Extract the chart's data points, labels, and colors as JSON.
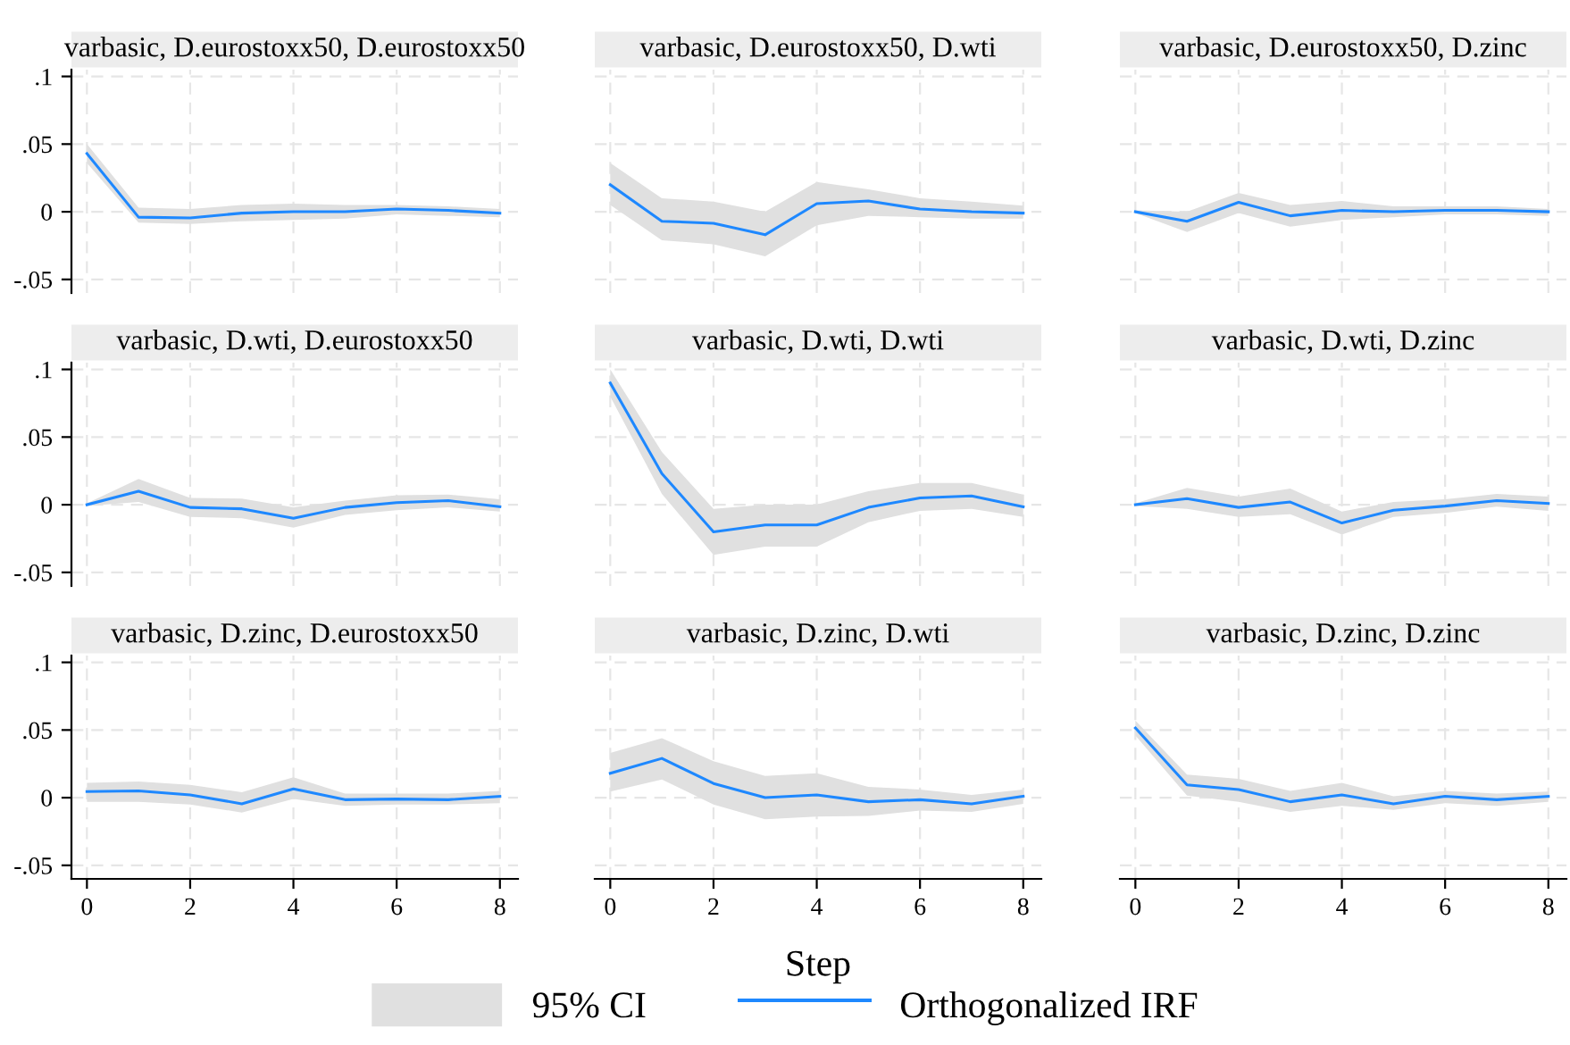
{
  "chart_data": [
    {
      "type": "line",
      "title": "varbasic, D.eurostoxx50, D.eurostoxx50",
      "x": [
        0,
        1,
        2,
        3,
        4,
        5,
        6,
        7,
        8
      ],
      "xlim": [
        -0.3,
        8.35
      ],
      "xticks": [
        {
          "value": 0,
          "label": null
        },
        {
          "value": 2,
          "label": null
        },
        {
          "value": 4,
          "label": null
        },
        {
          "value": 6,
          "label": null
        },
        {
          "value": 8,
          "label": null
        }
      ],
      "ylim": [
        -0.06,
        0.105
      ],
      "yticks": [
        {
          "value": -0.05,
          "label": "-.05"
        },
        {
          "value": 0,
          "label": "0"
        },
        {
          "value": 0.05,
          "label": ".05"
        },
        {
          "value": 0.1,
          "label": ".1"
        }
      ],
      "tick_labels": "y",
      "grid": true,
      "legend": false,
      "series": [
        {
          "type": "line",
          "color": "#1e88ff",
          "values": [
            0.043,
            -0.004,
            -0.0045,
            -0.001,
            0,
            0,
            0.002,
            0.001,
            -0.001
          ],
          "lower": [
            0.036,
            -0.008,
            -0.009,
            -0.007,
            -0.006,
            -0.005,
            -0.002,
            -0.003,
            -0.004
          ],
          "upper": [
            0.05,
            0.003,
            0.002,
            0.005,
            0.006,
            0.005,
            0.005,
            0.004,
            0.002
          ]
        }
      ]
    },
    {
      "type": "line",
      "title": "varbasic, D.eurostoxx50, D.wti",
      "x": [
        0,
        1,
        2,
        3,
        4,
        5,
        6,
        7,
        8
      ],
      "xlim": [
        -0.3,
        8.35
      ],
      "xticks": [
        {
          "value": 0,
          "label": null
        },
        {
          "value": 2,
          "label": null
        },
        {
          "value": 4,
          "label": null
        },
        {
          "value": 6,
          "label": null
        },
        {
          "value": 8,
          "label": null
        }
      ],
      "ylim": [
        -0.06,
        0.105
      ],
      "yticks": [
        {
          "value": -0.05,
          "label": null
        },
        {
          "value": 0,
          "label": null
        },
        {
          "value": 0.05,
          "label": null
        },
        {
          "value": 0.1,
          "label": null
        }
      ],
      "tick_labels": false,
      "grid": true,
      "legend": false,
      "series": [
        {
          "type": "line",
          "color": "#1e88ff",
          "values": [
            0.02,
            -0.007,
            -0.0085,
            -0.017,
            0.006,
            0.008,
            0.002,
            0,
            -0.001
          ],
          "lower": [
            0.005,
            -0.021,
            -0.024,
            -0.033,
            -0.01,
            -0.003,
            -0.004,
            -0.005,
            -0.005
          ],
          "upper": [
            0.036,
            0.01,
            0.0075,
            0,
            0.022,
            0.0165,
            0.01,
            0.0075,
            0.0045
          ]
        }
      ]
    },
    {
      "type": "line",
      "title": "varbasic, D.eurostoxx50, D.zinc",
      "x": [
        0,
        1,
        2,
        3,
        4,
        5,
        6,
        7,
        8
      ],
      "xlim": [
        -0.3,
        8.35
      ],
      "xticks": [
        {
          "value": 0,
          "label": null
        },
        {
          "value": 2,
          "label": null
        },
        {
          "value": 4,
          "label": null
        },
        {
          "value": 6,
          "label": null
        },
        {
          "value": 8,
          "label": null
        }
      ],
      "ylim": [
        -0.06,
        0.105
      ],
      "yticks": [
        {
          "value": -0.05,
          "label": null
        },
        {
          "value": 0,
          "label": null
        },
        {
          "value": 0.05,
          "label": null
        },
        {
          "value": 0.1,
          "label": null
        }
      ],
      "tick_labels": false,
      "grid": true,
      "legend": false,
      "series": [
        {
          "type": "line",
          "color": "#1e88ff",
          "values": [
            0,
            -0.007,
            0.007,
            -0.003,
            0.001,
            0,
            0.001,
            0.001,
            0
          ],
          "lower": [
            -0.001,
            -0.015,
            -0.001,
            -0.011,
            -0.006,
            -0.004,
            -0.002,
            -0.002,
            -0.003
          ],
          "upper": [
            0.001,
            0,
            0.014,
            0.005,
            0.008,
            0.004,
            0.004,
            0.004,
            0.002
          ]
        }
      ]
    },
    {
      "type": "line",
      "title": "varbasic, D.wti, D.eurostoxx50",
      "x": [
        0,
        1,
        2,
        3,
        4,
        5,
        6,
        7,
        8
      ],
      "xlim": [
        -0.3,
        8.35
      ],
      "xticks": [
        {
          "value": 0,
          "label": null
        },
        {
          "value": 2,
          "label": null
        },
        {
          "value": 4,
          "label": null
        },
        {
          "value": 6,
          "label": null
        },
        {
          "value": 8,
          "label": null
        }
      ],
      "ylim": [
        -0.06,
        0.105
      ],
      "yticks": [
        {
          "value": -0.05,
          "label": "-.05"
        },
        {
          "value": 0,
          "label": "0"
        },
        {
          "value": 0.05,
          "label": ".05"
        },
        {
          "value": 0.1,
          "label": ".1"
        }
      ],
      "tick_labels": "y",
      "grid": true,
      "legend": false,
      "series": [
        {
          "type": "line",
          "color": "#1e88ff",
          "values": [
            0,
            0.01,
            -0.002,
            -0.003,
            -0.01,
            -0.002,
            0.0015,
            0.003,
            -0.0015
          ],
          "lower": [
            -0.001,
            0.002,
            -0.009,
            -0.01,
            -0.017,
            -0.0075,
            -0.004,
            -0.002,
            -0.005
          ],
          "upper": [
            0.001,
            0.019,
            0.005,
            0.0045,
            -0.002,
            0.003,
            0.007,
            0.0075,
            0.004
          ]
        }
      ]
    },
    {
      "type": "line",
      "title": "varbasic, D.wti, D.wti",
      "x": [
        0,
        1,
        2,
        3,
        4,
        5,
        6,
        7,
        8
      ],
      "xlim": [
        -0.3,
        8.35
      ],
      "xticks": [
        {
          "value": 0,
          "label": null
        },
        {
          "value": 2,
          "label": null
        },
        {
          "value": 4,
          "label": null
        },
        {
          "value": 6,
          "label": null
        },
        {
          "value": 8,
          "label": null
        }
      ],
      "ylim": [
        -0.06,
        0.105
      ],
      "yticks": [
        {
          "value": -0.05,
          "label": null
        },
        {
          "value": 0,
          "label": null
        },
        {
          "value": 0.05,
          "label": null
        },
        {
          "value": 0.1,
          "label": null
        }
      ],
      "tick_labels": false,
      "grid": true,
      "legend": false,
      "series": [
        {
          "type": "line",
          "color": "#1e88ff",
          "values": [
            0.09,
            0.023,
            -0.02,
            -0.015,
            -0.015,
            -0.002,
            0.005,
            0.0065,
            -0.0015
          ],
          "lower": [
            0.08,
            0.008,
            -0.037,
            -0.031,
            -0.031,
            -0.013,
            -0.0045,
            -0.003,
            -0.009
          ],
          "upper": [
            0.1,
            0.039,
            -0.003,
            0,
            0,
            0.01,
            0.016,
            0.016,
            0.0075
          ]
        }
      ]
    },
    {
      "type": "line",
      "title": "varbasic, D.wti, D.zinc",
      "x": [
        0,
        1,
        2,
        3,
        4,
        5,
        6,
        7,
        8
      ],
      "xlim": [
        -0.3,
        8.35
      ],
      "xticks": [
        {
          "value": 0,
          "label": null
        },
        {
          "value": 2,
          "label": null
        },
        {
          "value": 4,
          "label": null
        },
        {
          "value": 6,
          "label": null
        },
        {
          "value": 8,
          "label": null
        }
      ],
      "ylim": [
        -0.06,
        0.105
      ],
      "yticks": [
        {
          "value": -0.05,
          "label": null
        },
        {
          "value": 0,
          "label": null
        },
        {
          "value": 0.05,
          "label": null
        },
        {
          "value": 0.1,
          "label": null
        }
      ],
      "tick_labels": false,
      "grid": true,
      "legend": false,
      "series": [
        {
          "type": "line",
          "color": "#1e88ff",
          "values": [
            0,
            0.0045,
            -0.002,
            0.002,
            -0.0135,
            -0.004,
            -0.001,
            0.003,
            0.001
          ],
          "lower": [
            -0.001,
            -0.003,
            -0.009,
            -0.007,
            -0.022,
            -0.009,
            -0.006,
            -0.0015,
            -0.0045
          ],
          "upper": [
            0.001,
            0.0125,
            0.006,
            0.012,
            -0.005,
            0.002,
            0.004,
            0.008,
            0.006
          ]
        }
      ]
    },
    {
      "type": "line",
      "title": "varbasic, D.zinc, D.eurostoxx50",
      "x": [
        0,
        1,
        2,
        3,
        4,
        5,
        6,
        7,
        8
      ],
      "xlim": [
        -0.3,
        8.35
      ],
      "xticks": [
        0,
        2,
        4,
        6,
        8
      ],
      "ylim": [
        -0.06,
        0.105
      ],
      "yticks": [
        {
          "value": -0.05,
          "label": "-.05"
        },
        {
          "value": 0,
          "label": "0"
        },
        {
          "value": 0.05,
          "label": ".05"
        },
        {
          "value": 0.1,
          "label": ".1"
        }
      ],
      "grid": true,
      "legend": false,
      "series": [
        {
          "type": "line",
          "color": "#1e88ff",
          "values": [
            0.0045,
            0.005,
            0.002,
            -0.0045,
            0.0065,
            -0.0015,
            -0.001,
            -0.0015,
            0.001
          ],
          "lower": [
            -0.003,
            -0.003,
            -0.005,
            -0.011,
            -0.001,
            -0.006,
            -0.005,
            -0.005,
            -0.004
          ],
          "upper": [
            0.011,
            0.012,
            0.0095,
            0.004,
            0.015,
            0.003,
            0.003,
            0.003,
            0.005
          ]
        }
      ]
    },
    {
      "type": "line",
      "title": "varbasic, D.zinc, D.wti",
      "xlabel": "Step",
      "annotations": [
        "95% CI"
      ],
      "x": [
        0,
        1,
        2,
        3,
        4,
        5,
        6,
        7,
        8
      ],
      "xlim": [
        -0.3,
        8.35
      ],
      "xticks": [
        0,
        2,
        4,
        6,
        8
      ],
      "ylim": [
        -0.06,
        0.105
      ],
      "yticks": [
        {
          "value": -0.05,
          "label": null
        },
        {
          "value": 0,
          "label": null
        },
        {
          "value": 0.05,
          "label": null
        },
        {
          "value": 0.1,
          "label": null
        }
      ],
      "tick_labels": "x",
      "grid": true,
      "legend": "bottom",
      "series": [
        {
          "type": "line",
          "name": "Orthogonalized IRF",
          "color": "#1e88ff",
          "values": [
            0.018,
            0.029,
            0.0105,
            0,
            0.002,
            -0.003,
            -0.0015,
            -0.0045,
            0.001
          ],
          "lower": [
            0.0045,
            0.0135,
            -0.005,
            -0.016,
            -0.014,
            -0.0135,
            -0.0095,
            -0.0105,
            -0.0045
          ],
          "upper": [
            0.033,
            0.044,
            0.027,
            0.016,
            0.018,
            0.008,
            0.006,
            0.002,
            0.006
          ]
        }
      ]
    },
    {
      "type": "line",
      "title": "varbasic, D.zinc, D.zinc",
      "x": [
        0,
        1,
        2,
        3,
        4,
        5,
        6,
        7,
        8
      ],
      "xlim": [
        -0.3,
        8.35
      ],
      "xticks": [
        0,
        2,
        4,
        6,
        8
      ],
      "ylim": [
        -0.06,
        0.105
      ],
      "yticks": [
        {
          "value": -0.05,
          "label": null
        },
        {
          "value": 0,
          "label": null
        },
        {
          "value": 0.05,
          "label": null
        },
        {
          "value": 0.1,
          "label": null
        }
      ],
      "tick_labels": "x",
      "grid": true,
      "legend": false,
      "series": [
        {
          "type": "line",
          "color": "#1e88ff",
          "values": [
            0.0515,
            0.0095,
            0.006,
            -0.003,
            0.002,
            -0.0045,
            0.001,
            -0.0015,
            0.001
          ],
          "lower": [
            0.046,
            0.0015,
            -0.003,
            -0.0105,
            -0.006,
            -0.009,
            -0.004,
            -0.006,
            -0.003
          ],
          "upper": [
            0.057,
            0.017,
            0.014,
            0.005,
            0.011,
            0.001,
            0.005,
            0.003,
            0.0045
          ]
        }
      ]
    }
  ]
}
